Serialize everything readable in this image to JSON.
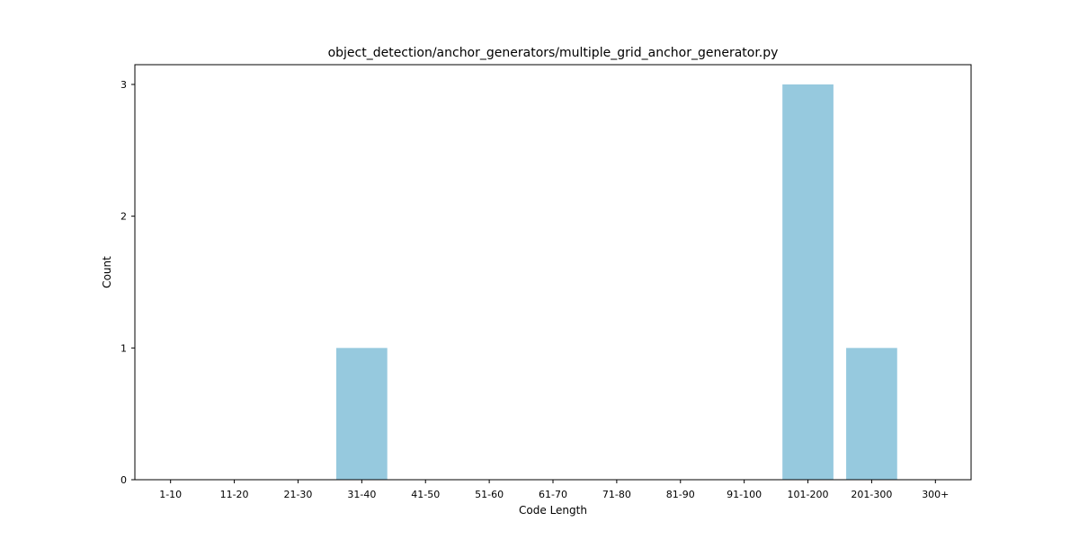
{
  "chart_data": {
    "type": "bar",
    "title": "object_detection/anchor_generators/multiple_grid_anchor_generator.py",
    "xlabel": "Code Length",
    "ylabel": "Count",
    "categories": [
      "1-10",
      "11-20",
      "21-30",
      "31-40",
      "41-50",
      "51-60",
      "61-70",
      "71-80",
      "81-90",
      "91-100",
      "101-200",
      "201-300",
      "300+"
    ],
    "values": [
      0,
      0,
      0,
      1,
      0,
      0,
      0,
      0,
      0,
      0,
      3,
      1,
      0
    ],
    "ylim": [
      0,
      3.15
    ],
    "yticks": [
      0,
      1,
      2,
      3
    ],
    "bar_color": "#96c9de",
    "grid": false,
    "legend": "none"
  }
}
